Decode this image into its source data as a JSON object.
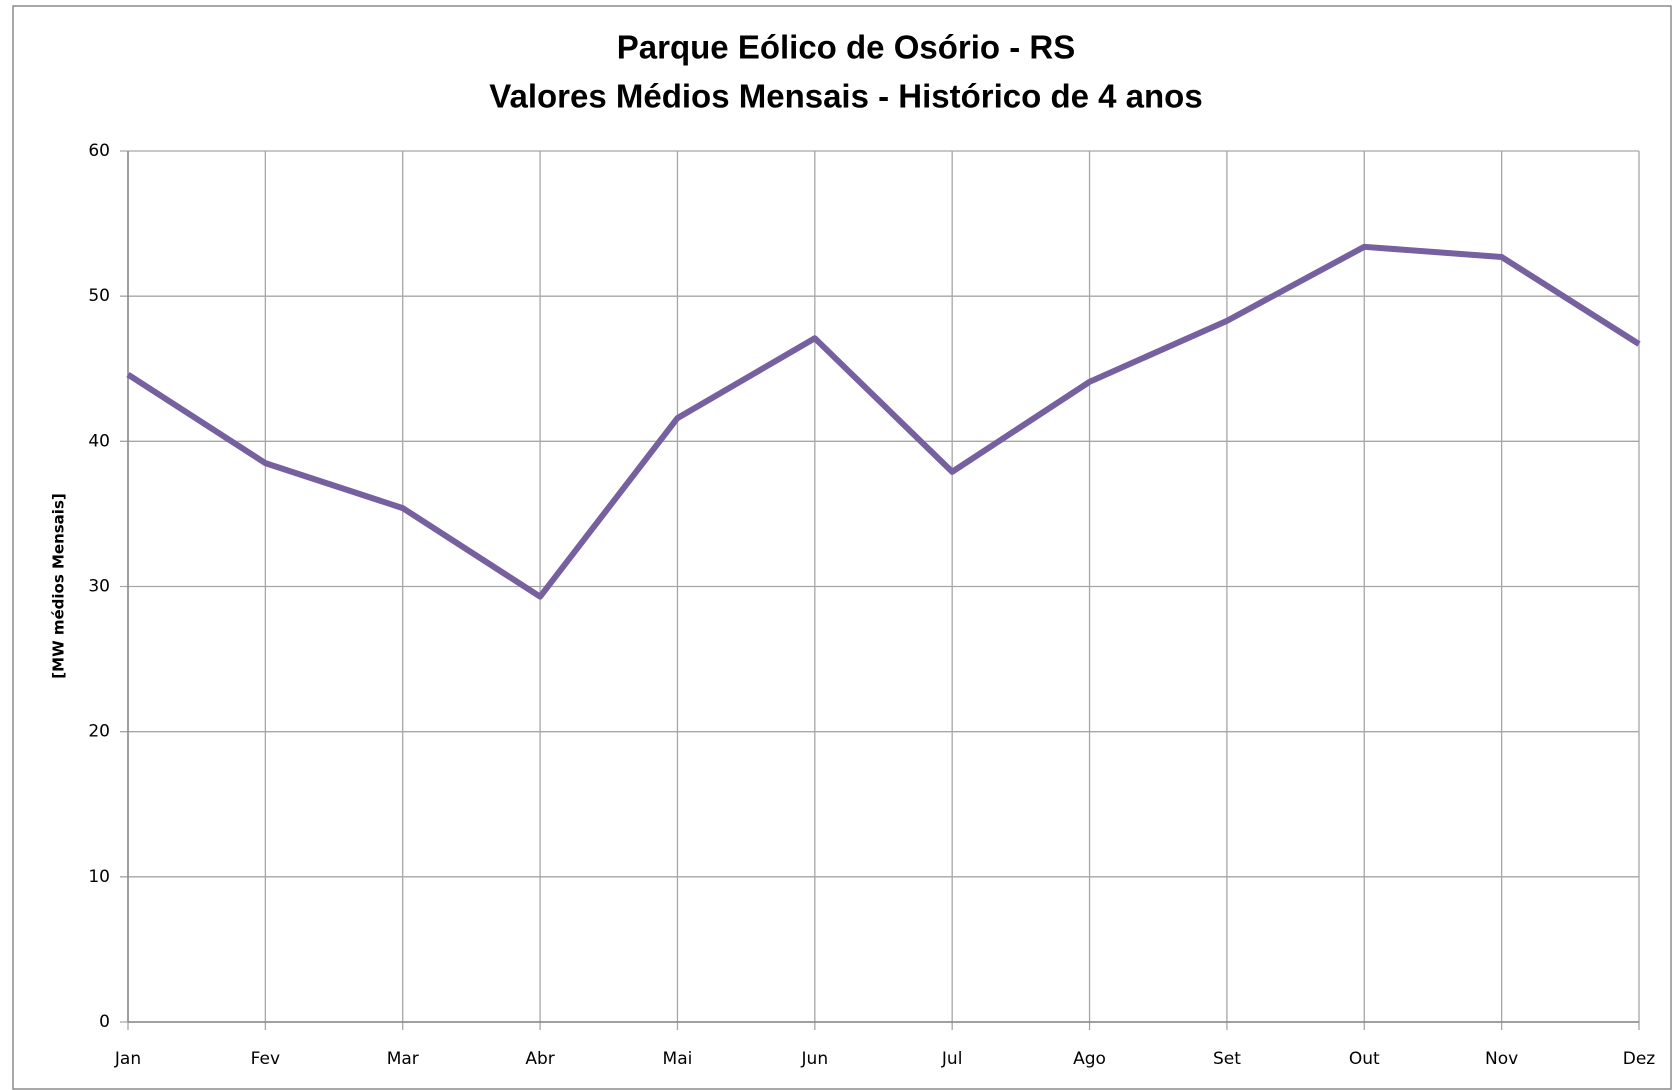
{
  "chart_data": {
    "type": "line",
    "title": "Parque Eólico de Osório - RS",
    "subtitle": "Valores Médios Mensais - Histórico de 4 anos",
    "y_label": "[MW médios Mensais]",
    "categories": [
      "Jan",
      "Fev",
      "Mar",
      "Abr",
      "Mai",
      "Jun",
      "Jul",
      "Ago",
      "Set",
      "Out",
      "Nov",
      "Dez"
    ],
    "series": [
      {
        "name": "MW médios",
        "color": "#76609f",
        "values": [
          44.6,
          38.5,
          35.4,
          29.3,
          41.6,
          47.1,
          37.9,
          44.1,
          48.3,
          53.4,
          52.7,
          46.7
        ]
      }
    ],
    "ylim": [
      0,
      60
    ],
    "yticks": [
      0,
      10,
      20,
      30,
      40,
      50,
      60
    ],
    "grid": true
  }
}
